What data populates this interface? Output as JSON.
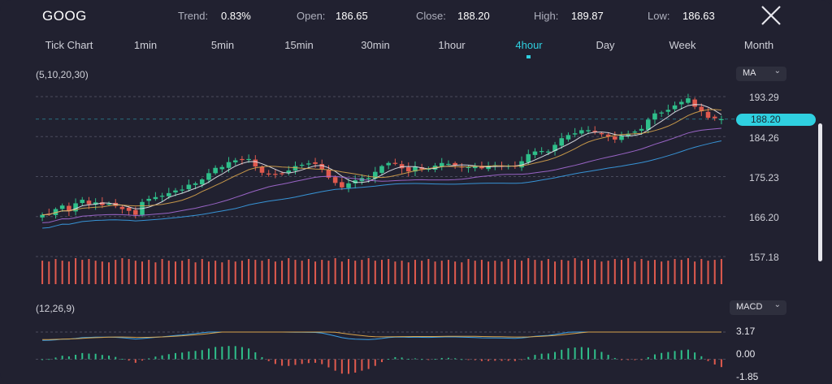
{
  "header": {
    "symbol": "GOOG",
    "trend_label": "Trend:",
    "trend_value": "0.83%",
    "open_label": "Open:",
    "open_value": "186.65",
    "close_label": "Close:",
    "close_value": "188.20",
    "high_label": "High:",
    "high_value": "189.87",
    "low_label": "Low:",
    "low_value": "186.63"
  },
  "tabs": [
    {
      "label": "Tick Chart"
    },
    {
      "label": "1min"
    },
    {
      "label": "5min"
    },
    {
      "label": "15min"
    },
    {
      "label": "30min"
    },
    {
      "label": "1hour"
    },
    {
      "label": "4hour",
      "active": true
    },
    {
      "label": "Day"
    },
    {
      "label": "Week"
    },
    {
      "label": "Month"
    }
  ],
  "main_panel": {
    "params": "(5,10,20,30)",
    "indicator": "MA",
    "price_labels": [
      "193.29",
      "184.26",
      "175.23",
      "166.20",
      "157.18"
    ],
    "current_price": "188.20"
  },
  "macd_panel": {
    "params": "(12,26,9)",
    "indicator": "MACD",
    "labels": [
      "3.17",
      "0.00",
      "-1.85"
    ]
  },
  "colors": {
    "up": "#2fbf8a",
    "down": "#e05a4e",
    "accent": "#2fd0e0",
    "ma5": "#e8e8ee",
    "ma10": "#d8a44c",
    "ma20": "#a66bd6",
    "ma30": "#3aa0e8",
    "volume": "#e05a4e"
  },
  "chart_data": {
    "type": "candlestick",
    "y_ticks": [
      193.29,
      184.26,
      175.23,
      166.2,
      157.18
    ],
    "ylim": [
      157.18,
      193.29
    ],
    "close_series": [
      166.6,
      166.8,
      167.9,
      168.7,
      167.4,
      169.2,
      170.0,
      169.0,
      169.4,
      168.8,
      169.1,
      168.6,
      167.9,
      167.5,
      166.6,
      169.5,
      170.2,
      170.6,
      170.9,
      171.5,
      172.1,
      172.3,
      173.4,
      173.7,
      174.6,
      176.0,
      177.2,
      177.4,
      178.5,
      178.9,
      179.0,
      179.2,
      177.5,
      176.1,
      175.8,
      175.7,
      175.9,
      176.6,
      177.6,
      177.9,
      178.2,
      178.1,
      176.9,
      175.0,
      173.8,
      172.8,
      173.7,
      174.4,
      174.9,
      174.9,
      176.3,
      177.6,
      178.3,
      178.1,
      177.1,
      176.4,
      177.5,
      176.9,
      177.0,
      177.7,
      178.3,
      178.1,
      177.8,
      177.5,
      177.4,
      177.6,
      177.1,
      177.6,
      177.8,
      177.6,
      177.7,
      177.5,
      178.7,
      180.3,
      180.9,
      181.0,
      180.9,
      182.4,
      183.9,
      184.6,
      185.0,
      185.7,
      185.7,
      185.3,
      184.8,
      184.3,
      183.6,
      184.4,
      184.9,
      185.4,
      186.0,
      188.1,
      189.5,
      189.7,
      190.3,
      191.3,
      192.1,
      192.9,
      191.0,
      190.0,
      188.5,
      188.4,
      188.2
    ],
    "volume_series": [
      28,
      27,
      30,
      28,
      27,
      31,
      29,
      30,
      28,
      27,
      26,
      29,
      31,
      30,
      28,
      27,
      29,
      26,
      30,
      28,
      27,
      28,
      30,
      26,
      30,
      27,
      28,
      26,
      29,
      27,
      28,
      30,
      29,
      28,
      30,
      27,
      28,
      31,
      29,
      28,
      30,
      27,
      29,
      28,
      31,
      27,
      30,
      28,
      29,
      31,
      28,
      29,
      30,
      27,
      28,
      26,
      29,
      28,
      30,
      27,
      28,
      29,
      27,
      26,
      30,
      28,
      29,
      27,
      28,
      27,
      30,
      29,
      28,
      31,
      29,
      28,
      30,
      27,
      29,
      28,
      31,
      28,
      30,
      29,
      27,
      28,
      30,
      29,
      31,
      27,
      30,
      28,
      29,
      27,
      28,
      30,
      29,
      31,
      27,
      30,
      28,
      29,
      30
    ],
    "macd_ylim": [
      -1.85,
      3.17
    ]
  }
}
